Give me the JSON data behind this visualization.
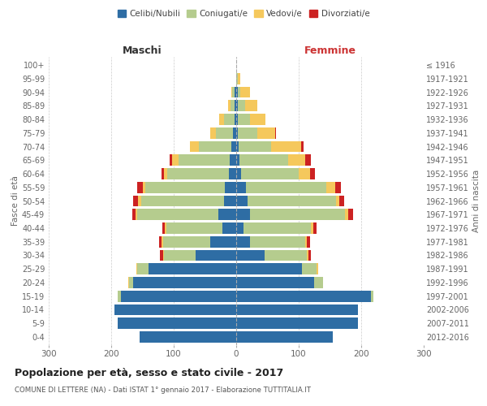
{
  "age_groups": [
    "0-4",
    "5-9",
    "10-14",
    "15-19",
    "20-24",
    "25-29",
    "30-34",
    "35-39",
    "40-44",
    "45-49",
    "50-54",
    "55-59",
    "60-64",
    "65-69",
    "70-74",
    "75-79",
    "80-84",
    "85-89",
    "90-94",
    "95-99",
    "100+"
  ],
  "birth_years": [
    "2012-2016",
    "2007-2011",
    "2002-2006",
    "1997-2001",
    "1992-1996",
    "1987-1991",
    "1982-1986",
    "1977-1981",
    "1972-1976",
    "1967-1971",
    "1962-1966",
    "1957-1961",
    "1952-1956",
    "1947-1951",
    "1942-1946",
    "1937-1941",
    "1932-1936",
    "1927-1931",
    "1922-1926",
    "1917-1921",
    "≤ 1916"
  ],
  "male_celibi": [
    155,
    190,
    195,
    185,
    165,
    140,
    65,
    42,
    22,
    28,
    20,
    18,
    12,
    10,
    8,
    5,
    3,
    2,
    2,
    0,
    0
  ],
  "male_coniugati": [
    0,
    0,
    0,
    4,
    6,
    18,
    50,
    75,
    90,
    130,
    132,
    128,
    98,
    82,
    52,
    28,
    16,
    7,
    4,
    0,
    0
  ],
  "male_vedovi": [
    0,
    0,
    0,
    0,
    2,
    2,
    2,
    2,
    2,
    3,
    5,
    4,
    5,
    10,
    14,
    9,
    8,
    4,
    2,
    0,
    0
  ],
  "male_divorziati": [
    0,
    0,
    0,
    0,
    0,
    0,
    5,
    5,
    4,
    5,
    8,
    8,
    5,
    5,
    0,
    0,
    0,
    0,
    0,
    0,
    0
  ],
  "fem_nubili": [
    155,
    195,
    195,
    215,
    125,
    105,
    45,
    22,
    12,
    22,
    18,
    16,
    8,
    5,
    4,
    2,
    2,
    2,
    2,
    0,
    0
  ],
  "fem_coniugate": [
    0,
    0,
    0,
    4,
    14,
    24,
    68,
    88,
    108,
    152,
    142,
    128,
    92,
    78,
    52,
    32,
    20,
    12,
    5,
    2,
    0
  ],
  "fem_vedove": [
    0,
    0,
    0,
    0,
    0,
    2,
    2,
    3,
    4,
    5,
    5,
    14,
    18,
    28,
    48,
    28,
    25,
    20,
    15,
    5,
    0
  ],
  "fem_divorziate": [
    0,
    0,
    0,
    0,
    0,
    0,
    5,
    5,
    5,
    8,
    8,
    10,
    8,
    8,
    4,
    2,
    0,
    0,
    0,
    0,
    0
  ],
  "colors": {
    "celibi": "#2e6da4",
    "coniugati": "#b5cc8e",
    "vedovi": "#f5c85c",
    "divorziati": "#cc2222"
  },
  "title": "Popolazione per età, sesso e stato civile - 2017",
  "subtitle": "COMUNE DI LETTERE (NA) - Dati ISTAT 1° gennaio 2017 - Elaborazione TUTTITALIA.IT",
  "xlabel_left": "Maschi",
  "xlabel_right": "Femmine",
  "ylabel_left": "Fasce di età",
  "ylabel_right": "Anni di nascita",
  "xlim": 300,
  "legend_labels": [
    "Celibi/Nubili",
    "Coniugati/e",
    "Vedovi/e",
    "Divorziati/e"
  ],
  "bg_color": "#ffffff",
  "grid_color": "#cccccc"
}
